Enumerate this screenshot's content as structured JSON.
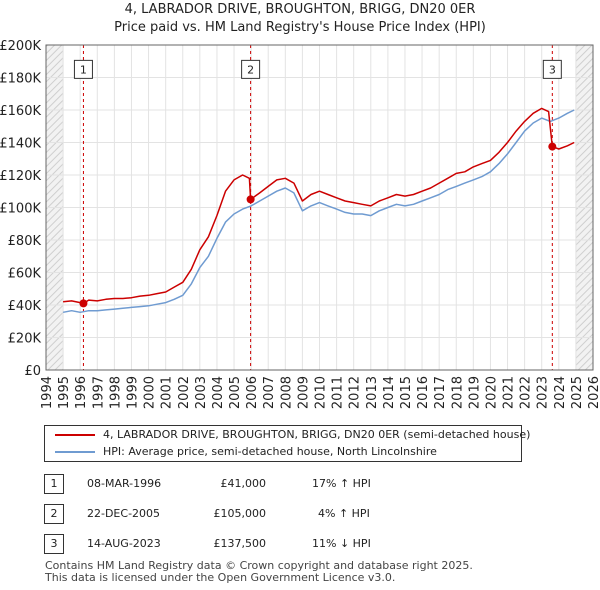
{
  "title": {
    "line1": "4, LABRADOR DRIVE, BROUGHTON, BRIGG, DN20 0ER",
    "line2": "Price paid vs. HM Land Registry's House Price Index (HPI)"
  },
  "chart_data": {
    "type": "line",
    "xlim": [
      1994,
      2026
    ],
    "ylim": [
      0,
      200000
    ],
    "x_ticks": [
      "1994",
      "1995",
      "1996",
      "1997",
      "1998",
      "1999",
      "2000",
      "2001",
      "2002",
      "2003",
      "2004",
      "2005",
      "2006",
      "2007",
      "2008",
      "2009",
      "2010",
      "2011",
      "2012",
      "2013",
      "2014",
      "2015",
      "2016",
      "2017",
      "2018",
      "2019",
      "2020",
      "2021",
      "2022",
      "2023",
      "2024",
      "2025",
      "2026"
    ],
    "y_ticks": [
      {
        "value": 0,
        "label": "£0"
      },
      {
        "value": 20000,
        "label": "£20K"
      },
      {
        "value": 40000,
        "label": "£40K"
      },
      {
        "value": 60000,
        "label": "£60K"
      },
      {
        "value": 80000,
        "label": "£80K"
      },
      {
        "value": 100000,
        "label": "£100K"
      },
      {
        "value": 120000,
        "label": "£120K"
      },
      {
        "value": 140000,
        "label": "£140K"
      },
      {
        "value": 160000,
        "label": "£160K"
      },
      {
        "value": 180000,
        "label": "£180K"
      },
      {
        "value": 200000,
        "label": "£200K"
      }
    ],
    "grid": true,
    "hatched_ranges": [
      [
        1994,
        1995
      ],
      [
        2025.0,
        2026
      ]
    ],
    "series": [
      {
        "name": "4, LABRADOR DRIVE, BROUGHTON, BRIGG, DN20 0ER (semi-detached house)",
        "color": "#cc0000",
        "points": [
          [
            1995.0,
            42000
          ],
          [
            1995.5,
            42500
          ],
          [
            1996.0,
            41500
          ],
          [
            1996.19,
            41000
          ],
          [
            1996.5,
            43000
          ],
          [
            1997.0,
            42500
          ],
          [
            1997.5,
            43500
          ],
          [
            1998.0,
            44000
          ],
          [
            1998.5,
            44000
          ],
          [
            1999.0,
            44500
          ],
          [
            1999.5,
            45500
          ],
          [
            2000.0,
            46000
          ],
          [
            2000.5,
            47000
          ],
          [
            2001.0,
            48000
          ],
          [
            2001.5,
            51000
          ],
          [
            2002.0,
            54000
          ],
          [
            2002.5,
            62000
          ],
          [
            2003.0,
            74000
          ],
          [
            2003.5,
            82000
          ],
          [
            2004.0,
            95000
          ],
          [
            2004.5,
            110000
          ],
          [
            2005.0,
            117000
          ],
          [
            2005.5,
            120000
          ],
          [
            2005.9,
            118000
          ],
          [
            2005.97,
            105000
          ],
          [
            2006.5,
            109000
          ],
          [
            2007.0,
            113000
          ],
          [
            2007.5,
            117000
          ],
          [
            2008.0,
            118000
          ],
          [
            2008.5,
            115000
          ],
          [
            2009.0,
            104000
          ],
          [
            2009.5,
            108000
          ],
          [
            2010.0,
            110000
          ],
          [
            2010.5,
            108000
          ],
          [
            2011.0,
            106000
          ],
          [
            2011.5,
            104000
          ],
          [
            2012.0,
            103000
          ],
          [
            2012.5,
            102000
          ],
          [
            2013.0,
            101000
          ],
          [
            2013.5,
            104000
          ],
          [
            2014.0,
            106000
          ],
          [
            2014.5,
            108000
          ],
          [
            2015.0,
            107000
          ],
          [
            2015.5,
            108000
          ],
          [
            2016.0,
            110000
          ],
          [
            2016.5,
            112000
          ],
          [
            2017.0,
            115000
          ],
          [
            2017.5,
            118000
          ],
          [
            2018.0,
            121000
          ],
          [
            2018.5,
            122000
          ],
          [
            2019.0,
            125000
          ],
          [
            2019.5,
            127000
          ],
          [
            2020.0,
            129000
          ],
          [
            2020.5,
            134000
          ],
          [
            2021.0,
            140000
          ],
          [
            2021.5,
            147000
          ],
          [
            2022.0,
            153000
          ],
          [
            2022.5,
            158000
          ],
          [
            2023.0,
            161000
          ],
          [
            2023.4,
            159000
          ],
          [
            2023.62,
            137500
          ],
          [
            2024.0,
            136000
          ],
          [
            2024.5,
            138000
          ],
          [
            2024.9,
            140000
          ]
        ]
      },
      {
        "name": "HPI: Average price, semi-detached house, North Lincolnshire",
        "color": "#6f9bd1",
        "points": [
          [
            1995.0,
            35500
          ],
          [
            1995.5,
            36500
          ],
          [
            1996.0,
            35500
          ],
          [
            1996.5,
            36500
          ],
          [
            1997.0,
            36500
          ],
          [
            1997.5,
            37000
          ],
          [
            1998.0,
            37500
          ],
          [
            1998.5,
            38000
          ],
          [
            1999.0,
            38500
          ],
          [
            1999.5,
            39000
          ],
          [
            2000.0,
            39500
          ],
          [
            2000.5,
            40500
          ],
          [
            2001.0,
            41500
          ],
          [
            2001.5,
            43500
          ],
          [
            2002.0,
            46000
          ],
          [
            2002.5,
            53000
          ],
          [
            2003.0,
            63000
          ],
          [
            2003.5,
            70000
          ],
          [
            2004.0,
            81000
          ],
          [
            2004.5,
            91000
          ],
          [
            2005.0,
            96000
          ],
          [
            2005.5,
            99000
          ],
          [
            2006.0,
            101000
          ],
          [
            2006.5,
            104000
          ],
          [
            2007.0,
            107000
          ],
          [
            2007.5,
            110000
          ],
          [
            2008.0,
            112000
          ],
          [
            2008.5,
            109000
          ],
          [
            2009.0,
            98000
          ],
          [
            2009.5,
            101000
          ],
          [
            2010.0,
            103000
          ],
          [
            2010.5,
            101000
          ],
          [
            2011.0,
            99000
          ],
          [
            2011.5,
            97000
          ],
          [
            2012.0,
            96000
          ],
          [
            2012.5,
            96000
          ],
          [
            2013.0,
            95000
          ],
          [
            2013.5,
            98000
          ],
          [
            2014.0,
            100000
          ],
          [
            2014.5,
            102000
          ],
          [
            2015.0,
            101000
          ],
          [
            2015.5,
            102000
          ],
          [
            2016.0,
            104000
          ],
          [
            2016.5,
            106000
          ],
          [
            2017.0,
            108000
          ],
          [
            2017.5,
            111000
          ],
          [
            2018.0,
            113000
          ],
          [
            2018.5,
            115000
          ],
          [
            2019.0,
            117000
          ],
          [
            2019.5,
            119000
          ],
          [
            2020.0,
            122000
          ],
          [
            2020.5,
            127000
          ],
          [
            2021.0,
            133000
          ],
          [
            2021.5,
            140000
          ],
          [
            2022.0,
            147000
          ],
          [
            2022.5,
            152000
          ],
          [
            2023.0,
            155000
          ],
          [
            2023.5,
            153000
          ],
          [
            2024.0,
            155000
          ],
          [
            2024.5,
            158000
          ],
          [
            2024.9,
            160000
          ]
        ]
      }
    ],
    "sales": [
      {
        "label": "1",
        "x": 1996.19,
        "price": 41000
      },
      {
        "label": "2",
        "x": 2005.97,
        "price": 105000
      },
      {
        "label": "3",
        "x": 2023.62,
        "price": 137500
      }
    ],
    "marker_label_value": 185000
  },
  "legend": {
    "property": "4, LABRADOR DRIVE, BROUGHTON, BRIGG, DN20 0ER (semi-detached house)",
    "hpi": "HPI: Average price, semi-detached house, North Lincolnshire",
    "property_color": "#cc0000",
    "hpi_color": "#6f9bd1"
  },
  "transactions": [
    {
      "num": "1",
      "date": "08-MAR-1996",
      "price": "£41,000",
      "hpi": "17% ↑ HPI"
    },
    {
      "num": "2",
      "date": "22-DEC-2005",
      "price": "£105,000",
      "hpi": "4% ↑ HPI"
    },
    {
      "num": "3",
      "date": "14-AUG-2023",
      "price": "£137,500",
      "hpi": "11% ↓ HPI"
    }
  ],
  "footer": {
    "line1": "Contains HM Land Registry data © Crown copyright and database right 2025.",
    "line2": "This data is licensed under the Open Government Licence v3.0."
  }
}
